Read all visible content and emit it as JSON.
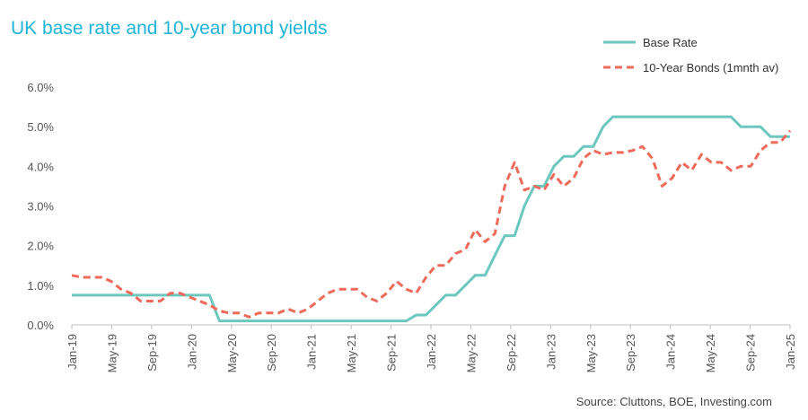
{
  "chart_data": {
    "type": "line",
    "title": "UK base rate and 10-year bond yields",
    "source": "Source: Cluttons,  BOE, Investing.com",
    "xlabel": "",
    "ylabel": "",
    "ylim": [
      0,
      6
    ],
    "y_ticks": [
      "0.0%",
      "1.0%",
      "2.0%",
      "3.0%",
      "4.0%",
      "5.0%",
      "6.0%"
    ],
    "x_tick_labels": [
      "Jan-19",
      "May-19",
      "Sep-19",
      "Jan-20",
      "May-20",
      "Sep-20",
      "Jan-21",
      "May-21",
      "Sep-21",
      "Jan-22",
      "May-22",
      "Sep-22",
      "Jan-23",
      "May-23",
      "Sep-23",
      "Jan-24",
      "May-24",
      "Sep-24",
      "Jan-25"
    ],
    "x_start": "Jan-19",
    "x_end": "Jan-25",
    "legend_position": "top-right",
    "grid": false,
    "series": [
      {
        "name": "Base Rate",
        "color": "#6cc7bf",
        "style": "solid",
        "values": [
          0.75,
          0.75,
          0.75,
          0.75,
          0.75,
          0.75,
          0.75,
          0.75,
          0.75,
          0.75,
          0.75,
          0.75,
          0.75,
          0.75,
          0.75,
          0.1,
          0.1,
          0.1,
          0.1,
          0.1,
          0.1,
          0.1,
          0.1,
          0.1,
          0.1,
          0.1,
          0.1,
          0.1,
          0.1,
          0.1,
          0.1,
          0.1,
          0.1,
          0.1,
          0.1,
          0.25,
          0.25,
          0.5,
          0.75,
          0.75,
          1.0,
          1.25,
          1.25,
          1.75,
          2.25,
          2.25,
          3.0,
          3.5,
          3.5,
          4.0,
          4.25,
          4.25,
          4.5,
          4.5,
          5.0,
          5.25,
          5.25,
          5.25,
          5.25,
          5.25,
          5.25,
          5.25,
          5.25,
          5.25,
          5.25,
          5.25,
          5.25,
          5.25,
          5.0,
          5.0,
          5.0,
          4.75,
          4.75,
          4.75
        ]
      },
      {
        "name": "10-Year Bonds (1mnth av)",
        "color": "#ee6a5a",
        "style": "dashed",
        "values": [
          1.25,
          1.2,
          1.2,
          1.2,
          1.1,
          0.9,
          0.8,
          0.6,
          0.6,
          0.6,
          0.8,
          0.8,
          0.7,
          0.6,
          0.5,
          0.35,
          0.3,
          0.3,
          0.2,
          0.3,
          0.3,
          0.3,
          0.4,
          0.3,
          0.4,
          0.6,
          0.8,
          0.9,
          0.9,
          0.9,
          0.7,
          0.6,
          0.8,
          1.1,
          0.9,
          0.8,
          1.2,
          1.5,
          1.5,
          1.8,
          1.9,
          2.4,
          2.1,
          2.3,
          3.5,
          4.1,
          3.4,
          3.5,
          3.4,
          3.8,
          3.5,
          3.7,
          4.2,
          4.4,
          4.3,
          4.35,
          4.35,
          4.4,
          4.5,
          4.2,
          3.5,
          3.7,
          4.1,
          3.9,
          4.3,
          4.1,
          4.1,
          3.9,
          4.0,
          4.0,
          4.4,
          4.6,
          4.6,
          4.9
        ]
      }
    ]
  }
}
